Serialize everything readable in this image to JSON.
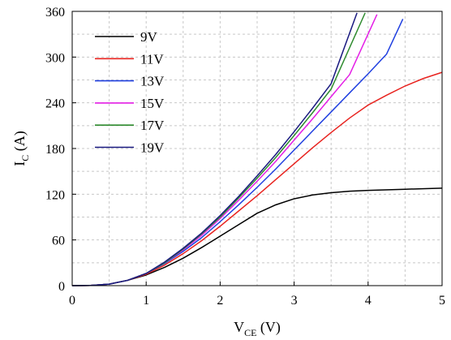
{
  "chart_data": {
    "type": "line",
    "title": "",
    "xlabel": {
      "main": "V",
      "sub": "CE",
      "unit": " (V)"
    },
    "ylabel": {
      "main": "I",
      "sub": "C",
      "unit": " (A)"
    },
    "xlim": [
      0,
      5
    ],
    "ylim": [
      0,
      360
    ],
    "x_ticks": [
      0,
      1,
      2,
      3,
      4,
      5
    ],
    "y_ticks": [
      0,
      60,
      120,
      180,
      240,
      300,
      360
    ],
    "grid": true,
    "legend_position": "top-left",
    "series": [
      {
        "name": "9V",
        "color": "#000000",
        "x": [
          0,
          0.25,
          0.5,
          0.75,
          1.0,
          1.25,
          1.5,
          1.75,
          2.0,
          2.25,
          2.5,
          2.75,
          3.0,
          3.25,
          3.5,
          3.75,
          4.0,
          4.5,
          5.0
        ],
        "y": [
          0,
          0.2,
          2,
          7,
          14,
          24,
          36,
          50,
          65,
          80,
          95,
          106,
          114,
          119,
          122,
          124,
          125,
          126.5,
          128
        ]
      },
      {
        "name": "11V",
        "color": "#e8231f",
        "x": [
          0,
          0.25,
          0.5,
          0.75,
          1.0,
          1.25,
          1.5,
          1.75,
          2.0,
          2.25,
          2.5,
          2.75,
          3.0,
          3.25,
          3.5,
          3.75,
          4.0,
          4.25,
          4.5,
          4.75,
          5.0
        ],
        "y": [
          0,
          0.2,
          2,
          7,
          15,
          27,
          42,
          59,
          78,
          98,
          118,
          139,
          160,
          181,
          201,
          220,
          237,
          250,
          262,
          272,
          280
        ]
      },
      {
        "name": "13V",
        "color": "#1f3fe0",
        "x": [
          0,
          0.25,
          0.5,
          0.75,
          1.0,
          1.25,
          1.5,
          1.75,
          2.0,
          2.25,
          2.5,
          2.75,
          3.0,
          3.25,
          3.5,
          3.75,
          4.0,
          4.25,
          4.47
        ],
        "y": [
          0,
          0.2,
          2,
          7,
          16,
          29,
          45,
          63,
          84,
          106,
          129,
          153,
          178,
          203,
          228,
          253,
          278,
          304,
          350
        ]
      },
      {
        "name": "15V",
        "color": "#e41ee6",
        "x": [
          0,
          0.25,
          0.5,
          0.75,
          1.0,
          1.25,
          1.5,
          1.75,
          2.0,
          2.25,
          2.5,
          2.75,
          3.0,
          3.25,
          3.5,
          3.75,
          4.12
        ],
        "y": [
          0,
          0.2,
          2,
          7,
          16,
          30,
          47,
          66,
          88,
          112,
          137,
          163,
          191,
          219,
          248,
          277,
          356
        ]
      },
      {
        "name": "17V",
        "color": "#2e8b2e",
        "x": [
          0,
          0.25,
          0.5,
          0.75,
          1.0,
          1.25,
          1.5,
          1.75,
          2.0,
          2.25,
          2.5,
          2.75,
          3.0,
          3.25,
          3.5,
          3.96
        ],
        "y": [
          0,
          0.2,
          2,
          7,
          16,
          30,
          48,
          68,
          90,
          115,
          141,
          168,
          197,
          227,
          258,
          358
        ]
      },
      {
        "name": "19V",
        "color": "#1a1a80",
        "x": [
          0,
          0.25,
          0.5,
          0.75,
          1.0,
          1.25,
          1.5,
          1.75,
          2.0,
          2.25,
          2.5,
          2.75,
          3.0,
          3.25,
          3.5,
          3.85
        ],
        "y": [
          0,
          0.2,
          2,
          7,
          16,
          31,
          49,
          69,
          92,
          117,
          144,
          172,
          202,
          233,
          265,
          358
        ]
      }
    ]
  }
}
